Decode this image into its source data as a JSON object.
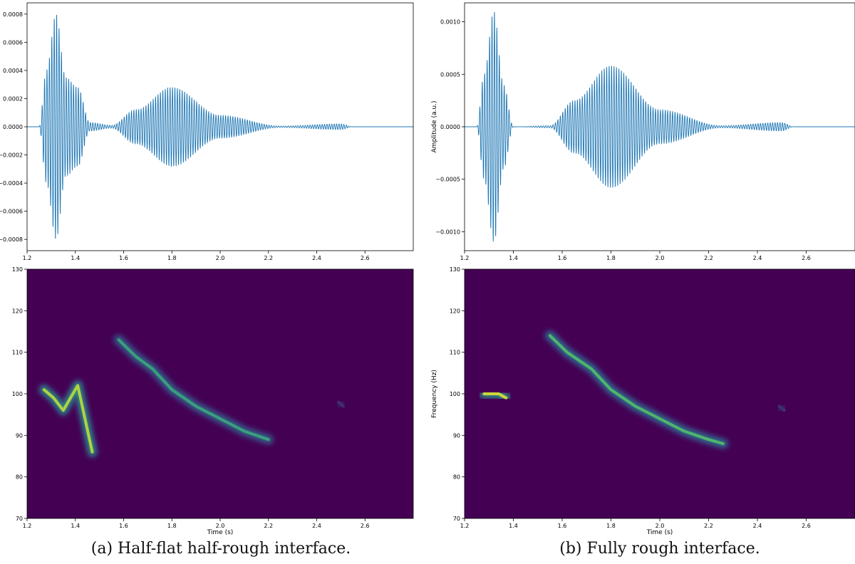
{
  "captions": {
    "a": "(a) Half-flat half-rough interface.",
    "b": "(b) Fully rough interface."
  },
  "chart_data": [
    {
      "id": "a-waveform",
      "type": "line",
      "ylabel": "Amplitude (a.u.)",
      "xlabel": "",
      "xlim": [
        1.2,
        2.8
      ],
      "ylim": [
        -0.00088,
        0.00088
      ],
      "xticks": [
        "1.2",
        "1.4",
        "1.6",
        "1.8",
        "2.0",
        "2.2",
        "2.4",
        "2.6"
      ],
      "yticks": [
        "−0.0008",
        "−0.0006",
        "−0.0004",
        "−0.0002",
        "0.0000",
        "0.0002",
        "0.0004",
        "0.0006",
        "0.0008"
      ],
      "ytick_values": [
        -0.0008,
        -0.0006,
        -0.0004,
        -0.0002,
        0,
        0.0002,
        0.0004,
        0.0006,
        0.0008
      ],
      "line_color": "#1f77b4",
      "series_envelope": [
        {
          "t": 1.25,
          "a": 0.0
        },
        {
          "t": 1.28,
          "a": 0.0004
        },
        {
          "t": 1.32,
          "a": 0.0008
        },
        {
          "t": 1.36,
          "a": 0.00035
        },
        {
          "t": 1.41,
          "a": 0.00028
        },
        {
          "t": 1.46,
          "a": 3e-05
        },
        {
          "t": 1.55,
          "a": 1e-05
        },
        {
          "t": 1.65,
          "a": 0.00012
        },
        {
          "t": 1.8,
          "a": 0.00028
        },
        {
          "t": 2.0,
          "a": 8e-05
        },
        {
          "t": 2.25,
          "a": 5e-06
        },
        {
          "t": 2.5,
          "a": 2e-05
        },
        {
          "t": 2.55,
          "a": 0.0
        }
      ],
      "carrier_hz": 100
    },
    {
      "id": "a-spectrogram",
      "type": "heatmap",
      "xlabel": "Time (s)",
      "ylabel": "Frequency (Hz)",
      "xlim": [
        1.2,
        2.8
      ],
      "ylim": [
        70,
        130
      ],
      "xticks": [
        "1.2",
        "1.4",
        "1.6",
        "1.8",
        "2.0",
        "2.2",
        "2.4",
        "2.6"
      ],
      "yticks": [
        "70",
        "80",
        "90",
        "100",
        "110",
        "120",
        "130"
      ],
      "ytick_values": [
        70,
        80,
        90,
        100,
        110,
        120,
        130
      ],
      "colormap": "viridis",
      "background": "#440154",
      "ridges": [
        {
          "t": [
            1.27,
            1.31,
            1.35,
            1.41,
            1.47
          ],
          "f": [
            101,
            99,
            96,
            102,
            86
          ],
          "intensity": 0.9
        },
        {
          "t": [
            1.58,
            1.65,
            1.72,
            1.8,
            1.9,
            2.0,
            2.1,
            2.2
          ],
          "f": [
            113,
            109,
            106,
            101,
            97,
            94,
            91,
            89
          ],
          "intensity": 0.6
        },
        {
          "t": [
            2.49,
            2.51
          ],
          "f": [
            98,
            97
          ],
          "intensity": 0.15
        }
      ]
    },
    {
      "id": "b-waveform",
      "type": "line",
      "ylabel": "Amplitude (a.u.)",
      "xlabel": "",
      "xlim": [
        1.2,
        2.8
      ],
      "ylim": [
        -0.00118,
        0.00118
      ],
      "xticks": [
        "1.2",
        "1.4",
        "1.6",
        "1.8",
        "2.0",
        "2.2",
        "2.4",
        "2.6"
      ],
      "yticks": [
        "−0.0010",
        "−0.0005",
        "0.0000",
        "0.0005",
        "0.0010"
      ],
      "ytick_values": [
        -0.001,
        -0.0005,
        0,
        0.0005,
        0.001
      ],
      "line_color": "#1f77b4",
      "series_envelope": [
        {
          "t": 1.25,
          "a": 0.0
        },
        {
          "t": 1.28,
          "a": 0.0005
        },
        {
          "t": 1.32,
          "a": 0.0011
        },
        {
          "t": 1.36,
          "a": 0.0004
        },
        {
          "t": 1.4,
          "a": 0.0
        },
        {
          "t": 1.55,
          "a": 1e-05
        },
        {
          "t": 1.65,
          "a": 0.00025
        },
        {
          "t": 1.8,
          "a": 0.00058
        },
        {
          "t": 2.0,
          "a": 0.00016
        },
        {
          "t": 2.25,
          "a": 1e-05
        },
        {
          "t": 2.5,
          "a": 4e-05
        },
        {
          "t": 2.55,
          "a": 0.0
        }
      ],
      "carrier_hz": 100
    },
    {
      "id": "b-spectrogram",
      "type": "heatmap",
      "xlabel": "Time (s)",
      "ylabel": "Frequency (Hz)",
      "xlim": [
        1.2,
        2.8
      ],
      "ylim": [
        70,
        130
      ],
      "xticks": [
        "1.2",
        "1.4",
        "1.6",
        "1.8",
        "2.0",
        "2.2",
        "2.4",
        "2.6"
      ],
      "yticks": [
        "70",
        "80",
        "90",
        "100",
        "110",
        "120",
        "130"
      ],
      "ytick_values": [
        70,
        80,
        90,
        100,
        110,
        120,
        130
      ],
      "colormap": "viridis",
      "background": "#440154",
      "ridges": [
        {
          "t": [
            1.28,
            1.31,
            1.34,
            1.37
          ],
          "f": [
            100,
            100,
            100,
            99
          ],
          "intensity": 0.95
        },
        {
          "t": [
            1.55,
            1.62,
            1.72,
            1.8,
            1.9,
            2.0,
            2.1,
            2.2,
            2.26
          ],
          "f": [
            114,
            110,
            106,
            101,
            97,
            94,
            91,
            89,
            88
          ],
          "intensity": 0.7
        },
        {
          "t": [
            2.49,
            2.51
          ],
          "f": [
            97,
            96
          ],
          "intensity": 0.15
        }
      ]
    }
  ]
}
